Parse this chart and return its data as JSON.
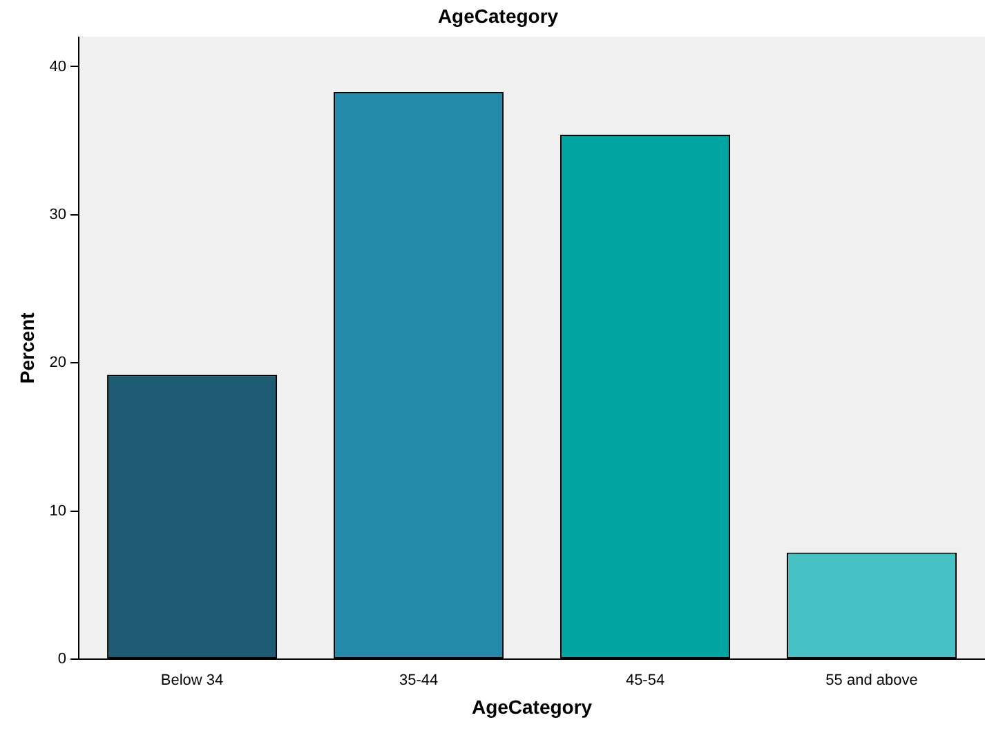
{
  "chart_data": {
    "type": "bar",
    "title": "AgeCategory",
    "xlabel": "AgeCategory",
    "ylabel": "Percent",
    "categories": [
      "Below 34",
      "35-44",
      "45-54",
      "55 and above"
    ],
    "values": [
      19.2,
      38.3,
      35.4,
      7.2
    ],
    "colors": [
      "#1e5c73",
      "#2589aa",
      "#00a5a2",
      "#48c1c5"
    ],
    "ylim": [
      0,
      42
    ],
    "yticks": [
      0,
      10,
      20,
      30,
      40
    ],
    "grid": false,
    "legend": false
  }
}
